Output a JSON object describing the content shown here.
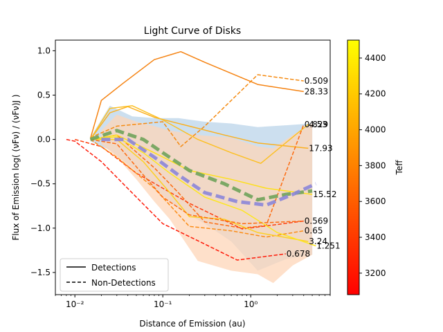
{
  "chart_data": {
    "type": "line",
    "title": "Light Curve of Disks",
    "xlabel": "Distance of Emission (au)",
    "ylabel": "Flux of Emission log( (νFν) / (νFν)J )",
    "x_scale": "log",
    "xlim": [
      0.006,
      8.0
    ],
    "ylim": [
      -1.75,
      1.12
    ],
    "x_ticks": [
      {
        "value": 0.01,
        "label": "10⁻²"
      },
      {
        "value": 0.1,
        "label": "10⁻¹"
      },
      {
        "value": 1,
        "label": "10⁰"
      }
    ],
    "y_ticks": [
      {
        "value": 1.0,
        "label": "1.0"
      },
      {
        "value": 0.5,
        "label": "0.5"
      },
      {
        "value": 0.0,
        "label": "0.0"
      },
      {
        "value": -0.5,
        "label": "−0.5"
      },
      {
        "value": -1.0,
        "label": "−1.0"
      },
      {
        "value": -1.5,
        "label": "−1.5"
      }
    ],
    "legend": {
      "placement": "lower-left",
      "entries": [
        {
          "label": "Detections",
          "style": "solid"
        },
        {
          "label": "Non-Detections",
          "style": "dashed"
        }
      ]
    },
    "colorbar": {
      "label": "Teff",
      "min": 3080,
      "max": 4500,
      "ticks": [
        3200,
        3400,
        3600,
        3800,
        4000,
        4200,
        4400
      ],
      "colors": [
        "#ff0000",
        "#ff8000",
        "#ffff00"
      ]
    },
    "bands": [
      {
        "color": "#c3d9ec",
        "x": [
          0.015,
          0.025,
          0.045,
          0.08,
          0.15,
          0.3,
          0.6,
          1.2,
          2.5,
          5.0
        ],
        "upper": [
          0.02,
          0.38,
          0.26,
          0.24,
          0.24,
          0.2,
          0.18,
          0.14,
          0.16,
          0.18
        ],
        "lower": [
          -0.02,
          -0.12,
          -0.32,
          -0.55,
          -0.78,
          -0.95,
          -1.15,
          -1.48,
          -1.35,
          -1.3
        ]
      },
      {
        "color": "#fdd5b8",
        "x": [
          0.02,
          0.03,
          0.05,
          0.08,
          0.12,
          0.25,
          0.6,
          1.2,
          1.8,
          3.0,
          5.0
        ],
        "upper": [
          0.1,
          0.28,
          0.2,
          0.15,
          0.1,
          0.05,
          0.02,
          -0.08,
          -0.1,
          0.05,
          0.18
        ],
        "lower": [
          -0.05,
          -0.2,
          -0.45,
          -0.7,
          -0.9,
          -1.37,
          -1.48,
          -1.52,
          -1.62,
          -1.42,
          -1.3
        ]
      }
    ],
    "series": [
      {
        "style": "solid",
        "color": "#f58210",
        "x": [
          0.015,
          0.02,
          0.035,
          0.08,
          0.16,
          0.3,
          1.2,
          4.0
        ],
        "y": [
          0.01,
          0.44,
          0.63,
          0.9,
          0.99,
          0.87,
          0.62,
          0.54
        ],
        "end_label": "28.33"
      },
      {
        "style": "dashed",
        "color": "#f58a10",
        "x": [
          0.015,
          0.03,
          0.1,
          0.16,
          0.3,
          1.2,
          4.0
        ],
        "y": [
          0.02,
          0.15,
          0.2,
          -0.08,
          0.15,
          0.73,
          0.66
        ],
        "end_label": "0.509"
      },
      {
        "style": "solid",
        "color": "#fbb01f",
        "x": [
          0.015,
          0.025,
          0.04,
          0.08,
          0.2,
          0.5,
          1.2,
          4.5
        ],
        "y": [
          0.0,
          0.3,
          0.37,
          0.25,
          0.15,
          0.05,
          -0.04,
          -0.1
        ],
        "end_label": "17.93"
      },
      {
        "style": "solid",
        "color": "#fcc025",
        "x": [
          0.015,
          0.025,
          0.045,
          0.1,
          0.25,
          0.6,
          1.3,
          4.5
        ],
        "y": [
          0.0,
          0.35,
          0.38,
          0.22,
          0.0,
          -0.15,
          -0.27,
          0.17
        ],
        "end_label": "4.53"
      },
      {
        "style": "dashed",
        "color": "#fd6a0e",
        "x": [
          0.015,
          0.03,
          0.08,
          0.15,
          0.3,
          0.8,
          1.5,
          4.0
        ],
        "y": [
          0.0,
          0.05,
          -0.32,
          -0.6,
          -0.93,
          -1.0,
          -0.97,
          0.17
        ],
        "end_label": "0.829"
      },
      {
        "style": "solid",
        "color": "#fde01c",
        "x": [
          0.015,
          0.03,
          0.08,
          0.2,
          0.6,
          1.5,
          5.0
        ],
        "y": [
          0.0,
          0.05,
          -0.15,
          -0.35,
          -0.45,
          -0.55,
          -0.62
        ],
        "end_label": "15.52"
      },
      {
        "style": "dashed",
        "color": "#fe3e0c",
        "x": [
          0.01,
          0.02,
          0.05,
          0.1,
          0.2,
          0.8,
          4.0
        ],
        "y": [
          0.0,
          -0.08,
          -0.38,
          -0.55,
          -0.72,
          -1.01,
          -0.92
        ],
        "end_label": "0.569"
      },
      {
        "style": "dashed",
        "color": "#fb8c16",
        "x": [
          0.015,
          0.03,
          0.08,
          0.2,
          0.6,
          1.5,
          4.0
        ],
        "y": [
          0.0,
          -0.2,
          -0.55,
          -0.98,
          -1.03,
          -1.1,
          -1.03
        ],
        "end_label": "0.65"
      },
      {
        "style": "solid",
        "color": "#fdd022",
        "x": [
          0.015,
          0.03,
          0.06,
          0.12,
          0.2,
          0.5,
          1.2,
          4.5
        ],
        "y": [
          0.0,
          0.0,
          -0.25,
          -0.6,
          -0.87,
          -0.9,
          -1.05,
          -1.15
        ],
        "end_label": "3.24"
      },
      {
        "style": "solid",
        "color": "#fde620",
        "x": [
          0.015,
          0.03,
          0.06,
          0.12,
          0.3,
          0.8,
          2.0,
          5.5
        ],
        "y": [
          0.0,
          0.03,
          -0.15,
          -0.38,
          -0.65,
          -0.8,
          -1.05,
          -1.2
        ],
        "end_label": "1.251"
      },
      {
        "style": "dashed",
        "color": "#fe1a08",
        "x": [
          0.008,
          0.01,
          0.02,
          0.05,
          0.1,
          0.3,
          0.7,
          2.5
        ],
        "y": [
          0.0,
          -0.02,
          -0.25,
          -0.65,
          -0.95,
          -1.18,
          -1.36,
          -1.29
        ],
        "end_label": "0.678"
      },
      {
        "style": "dashed",
        "color": "#fd6a0e",
        "x": [
          0.015,
          0.03,
          0.06,
          0.1,
          0.2,
          0.8,
          4.0
        ],
        "y": [
          0.0,
          -0.05,
          -0.4,
          -0.65,
          -0.85,
          -0.95,
          -0.92
        ],
        "end_label": ""
      }
    ],
    "average_lines": [
      {
        "color": "#6fa35a",
        "x": [
          0.015,
          0.03,
          0.06,
          0.1,
          0.2,
          0.5,
          1.2,
          2.5,
          5.0
        ],
        "y": [
          0.0,
          0.1,
          0.0,
          -0.15,
          -0.35,
          -0.5,
          -0.68,
          -0.62,
          -0.58
        ]
      },
      {
        "color": "#8b86d8",
        "x": [
          0.02,
          0.04,
          0.08,
          0.15,
          0.3,
          0.7,
          1.5,
          3.0,
          5.5
        ],
        "y": [
          0.0,
          0.0,
          -0.2,
          -0.4,
          -0.6,
          -0.7,
          -0.74,
          -0.62,
          -0.5
        ]
      }
    ]
  }
}
